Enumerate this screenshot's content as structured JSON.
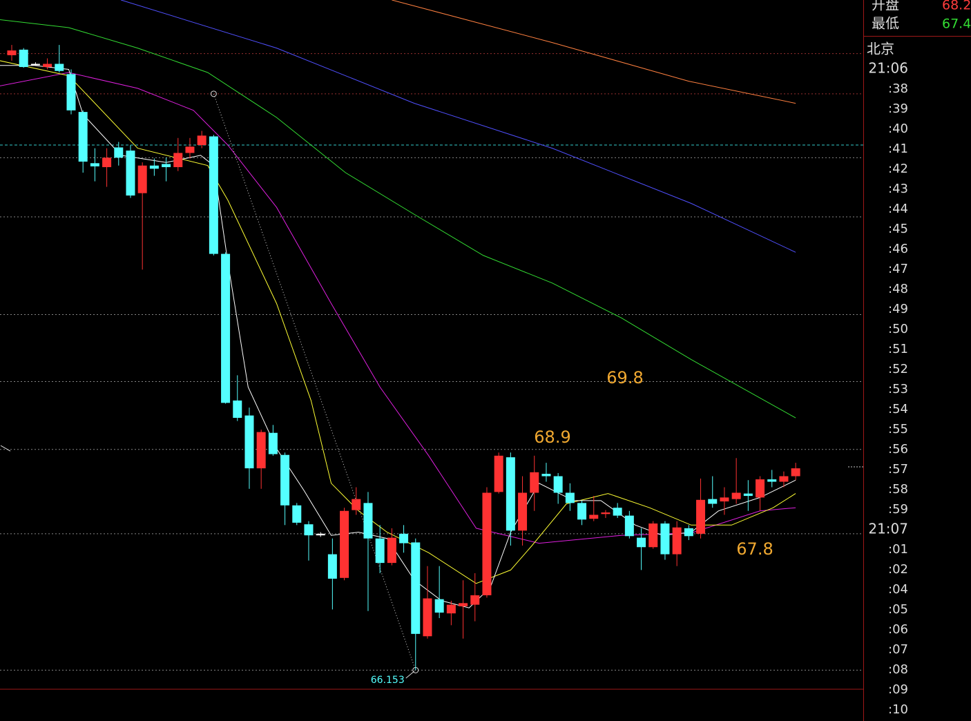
{
  "chart_data": {
    "type": "candlestick",
    "ylim": [
      65.505,
      74.65
    ],
    "xlim": [
      -0.988,
      71.69
    ],
    "up_color": "#ff3232",
    "down_color": "#54ffff",
    "open": [
      73.95,
      74.02,
      73.84,
      73.8,
      73.84,
      73.71,
      73.23,
      72.58,
      72.53,
      72.78,
      72.74,
      72.2,
      72.55,
      72.57,
      72.53,
      72.71,
      72.81,
      72.92,
      71.43,
      69.57,
      69.38,
      68.71,
      69.16,
      68.88,
      68.24,
      68.0,
      67.88,
      67.62,
      67.32,
      68.18,
      68.27,
      67.82,
      67.51,
      67.88,
      67.77,
      66.58,
      67.05,
      66.87,
      66.96,
      66.98,
      67.1,
      68.41,
      68.85,
      67.92,
      68.4,
      68.64,
      68.61,
      68.4,
      68.27,
      68.07,
      68.13,
      68.21,
      68.11,
      67.83,
      67.71,
      68.01,
      67.62,
      67.95,
      67.88,
      68.32,
      68.29,
      68.32,
      68.39,
      68.34,
      68.57,
      68.54,
      68.61
    ],
    "high": [
      74.08,
      74.04,
      73.86,
      73.91,
      74.08,
      73.77,
      73.25,
      72.77,
      72.77,
      72.85,
      72.81,
      72.59,
      72.64,
      72.65,
      72.9,
      72.9,
      72.99,
      72.94,
      71.45,
      69.89,
      69.48,
      69.2,
      69.26,
      68.91,
      68.27,
      68.04,
      67.9,
      67.82,
      68.21,
      68.47,
      68.41,
      67.99,
      67.95,
      67.99,
      67.82,
      67.47,
      67.47,
      67.03,
      67.29,
      67.38,
      68.47,
      68.91,
      68.91,
      68.61,
      68.87,
      68.78,
      68.65,
      68.52,
      68.3,
      68.36,
      68.18,
      68.27,
      68.17,
      67.95,
      68.04,
      68.04,
      68.04,
      67.99,
      68.58,
      68.61,
      68.47,
      68.84,
      68.56,
      68.61,
      68.69,
      68.67,
      68.78
    ],
    "low": [
      73.88,
      73.79,
      73.82,
      73.77,
      73.73,
      73.2,
      72.46,
      72.35,
      72.28,
      72.55,
      72.14,
      71.23,
      72.42,
      72.35,
      72.48,
      72.64,
      72.77,
      71.41,
      69.53,
      69.31,
      68.45,
      68.45,
      68.87,
      67.99,
      67.99,
      67.54,
      67.84,
      66.92,
      67.29,
      68.12,
      66.9,
      67.38,
      67.48,
      67.64,
      66.15,
      66.55,
      66.81,
      66.72,
      66.55,
      66.77,
      67.07,
      68.39,
      67.73,
      67.73,
      68.17,
      68.54,
      68.26,
      68.17,
      67.99,
      68.04,
      68.08,
      68.08,
      67.82,
      67.42,
      67.69,
      67.55,
      67.47,
      67.8,
      67.82,
      68.21,
      68.12,
      68.26,
      68.17,
      68.17,
      68.47,
      68.47,
      68.56
    ],
    "close": [
      74.01,
      73.8,
      73.83,
      73.84,
      73.75,
      73.25,
      72.6,
      72.54,
      72.65,
      72.65,
      72.17,
      72.55,
      72.51,
      72.53,
      72.71,
      72.79,
      72.93,
      71.43,
      69.54,
      69.35,
      68.71,
      69.17,
      68.89,
      68.24,
      68.02,
      67.86,
      67.86,
      67.31,
      68.17,
      68.32,
      67.82,
      67.51,
      67.83,
      67.76,
      66.61,
      67.06,
      66.88,
      66.98,
      67.0,
      67.1,
      68.4,
      68.87,
      67.92,
      68.4,
      68.66,
      68.61,
      68.4,
      68.27,
      68.06,
      68.12,
      68.15,
      68.11,
      67.85,
      67.71,
      68.01,
      67.62,
      67.96,
      67.85,
      68.31,
      68.26,
      68.34,
      68.4,
      68.36,
      68.57,
      68.54,
      68.61,
      68.71
    ],
    "lines": [
      {
        "color": "#ff8040",
        "x": [
          32,
          45.5,
          57,
          66
        ],
        "values": [
          74.65,
          74.11,
          73.62,
          73.34
        ]
      },
      {
        "color": "#5050ff",
        "x": [
          9.2,
          22.3,
          33.9,
          45.5,
          57.2,
          66
        ],
        "values": [
          74.65,
          74.04,
          73.34,
          72.77,
          72.07,
          71.45
        ]
      },
      {
        "color": "#33dd33",
        "x": [
          -1,
          4.8,
          10.6,
          16.5,
          22.3,
          28.1,
          33.9,
          39.7,
          45.5,
          51.3,
          57.2,
          66
        ],
        "values": [
          74.4,
          74.3,
          74.04,
          73.73,
          73.16,
          72.46,
          71.93,
          71.41,
          71.06,
          70.62,
          70.09,
          69.35
        ]
      },
      {
        "color": "#e020e0",
        "x": [
          -1,
          4.8,
          10.6,
          15.3,
          18.2,
          22.3,
          26.9,
          31,
          35.1,
          39.1,
          44.4,
          51.3,
          57.2,
          63,
          66
        ],
        "values": [
          73.56,
          73.73,
          73.53,
          73.25,
          72.81,
          72.02,
          70.8,
          69.74,
          68.87,
          67.95,
          67.76,
          67.86,
          67.89,
          68.17,
          68.21
        ]
      },
      {
        "color": "#ffff33",
        "x": [
          -1,
          4.8,
          10.6,
          16.5,
          18.2,
          22.3,
          25.2,
          26.9,
          29.2,
          31.6,
          35.1,
          39.1,
          42,
          43.8,
          46.7,
          50.2,
          53.7,
          57.2,
          60.6,
          64.1,
          66
        ],
        "values": [
          73.88,
          73.69,
          72.77,
          72.55,
          72.11,
          70.8,
          69.57,
          68.52,
          68.17,
          67.9,
          67.64,
          67.25,
          67.42,
          67.73,
          68.26,
          68.39,
          68.21,
          67.99,
          67.99,
          68.21,
          68.39
        ]
      },
      {
        "color": "#ffffff",
        "x": [
          -1,
          1.9,
          4.8,
          6,
          9.2,
          13,
          15.9,
          17,
          18.2,
          19.9,
          22.3,
          24.6,
          26.9,
          29.2,
          31.6,
          33.9,
          36.2,
          38.5,
          40.3,
          42,
          44.4,
          47.3,
          49.6,
          52.5,
          54.8,
          57.2,
          59.5,
          63,
          66
        ],
        "values": [
          73.82,
          73.82,
          73.77,
          73.2,
          72.68,
          72.59,
          72.68,
          72.55,
          71.32,
          69.74,
          68.96,
          68.43,
          67.86,
          67.9,
          67.82,
          67.29,
          67.03,
          66.94,
          67.2,
          67.9,
          68.52,
          68.3,
          68.3,
          67.99,
          67.86,
          67.9,
          68.17,
          68.34,
          68.56
        ]
      }
    ],
    "levels": [
      73.97,
      73.46,
      72.65,
      71.9,
      70.66,
      69.81,
      68.95,
      67.88,
      66.15
    ],
    "prev_close": 72.81,
    "trend": {
      "x": [
        17,
        34
      ],
      "values": [
        73.46,
        66.15
      ]
    },
    "high_mark": 68.911,
    "low_mark": 66.153,
    "annotations": [
      "69.8",
      "68.9",
      "67.8"
    ]
  },
  "side_panel": {
    "info": [
      {
        "label": "开盘",
        "value": 68.2
      },
      {
        "label": "最低",
        "value": 67.4
      }
    ],
    "zone": "北京",
    "times": [
      "21:06",
      ":38",
      ":39",
      ":40",
      ":41",
      ":42",
      ":43",
      ":44",
      ":45",
      ":46",
      ":47",
      ":48",
      ":49",
      ":50",
      ":51",
      ":52",
      ":53",
      ":54",
      ":55",
      ":56",
      ":57",
      ":58",
      ":59",
      "21:07",
      ":01",
      ":02",
      ":04",
      ":05",
      ":06",
      ":07",
      ":08",
      ":09",
      ":10"
    ]
  }
}
